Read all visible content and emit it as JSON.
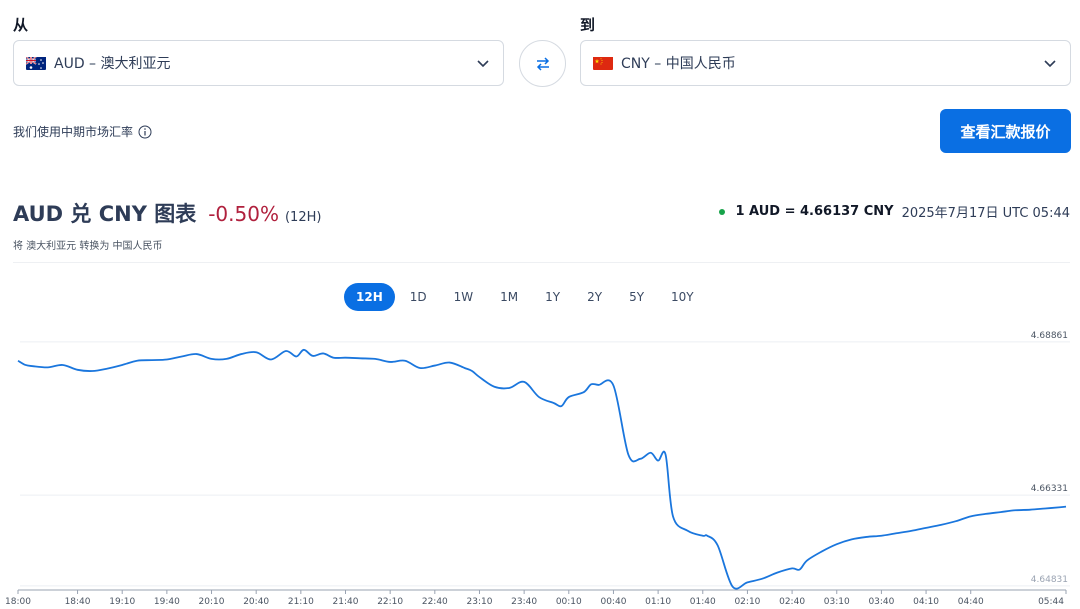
{
  "converter": {
    "from_label": "从",
    "to_label": "到",
    "from_value": "AUD – 澳大利亚元",
    "to_value": "CNY – 中国人民币",
    "midmarket_note": "我们使用中期市场汇率",
    "quote_button": "查看汇款报价"
  },
  "header": {
    "title": "AUD 兑 CNY 图表",
    "change": "-0.50%",
    "period": "(12H)",
    "subtitle": "将 澳大利亚元 转换为 中国人民币",
    "rate": "1 AUD = 4.66137 CNY",
    "timestamp": "2025年7月17日 UTC 05:44"
  },
  "tabs": [
    "12H",
    "1D",
    "1W",
    "1M",
    "1Y",
    "2Y",
    "5Y",
    "10Y"
  ],
  "active_tab": "12H",
  "colors": {
    "accent": "#0a6fe3",
    "negative": "#b0203d",
    "live_dot": "#17a34a",
    "line": "#1a76dd"
  },
  "chart_data": {
    "type": "line",
    "title": "",
    "xlabel": "",
    "ylabel": "",
    "y_ticks": [
      "4.68861",
      "4.66331",
      "4.64831"
    ],
    "ylim": [
      4.6478,
      4.6914
    ],
    "x_ticks": [
      "18:00",
      "18:40",
      "19:10",
      "19:40",
      "20:10",
      "20:40",
      "21:10",
      "21:40",
      "22:10",
      "22:40",
      "23:10",
      "23:40",
      "00:10",
      "00:40",
      "01:10",
      "01:40",
      "02:10",
      "02:40",
      "03:10",
      "03:40",
      "04:10",
      "04:40",
      "05:44"
    ],
    "grid": "horizontal",
    "series": [
      {
        "x": [
          "18:00",
          "18:05",
          "18:10",
          "18:20",
          "18:30",
          "18:40",
          "18:50",
          "19:00",
          "19:10",
          "19:20",
          "19:30",
          "19:40",
          "19:50",
          "20:00",
          "20:10",
          "20:20",
          "20:30",
          "20:40",
          "20:50",
          "21:00",
          "21:07",
          "21:12",
          "21:18",
          "21:25",
          "21:32",
          "21:40",
          "21:50",
          "22:00",
          "22:10",
          "22:20",
          "22:30",
          "22:40",
          "22:50",
          "23:00",
          "23:05",
          "23:10",
          "23:20",
          "23:30",
          "23:40",
          "23:50",
          "00:00",
          "00:05",
          "00:10",
          "00:20",
          "00:25",
          "00:30",
          "00:40",
          "00:50",
          "00:58",
          "01:05",
          "01:10",
          "01:15",
          "01:20",
          "01:30",
          "01:40",
          "01:43",
          "01:50",
          "02:00",
          "02:10",
          "02:20",
          "02:30",
          "02:40",
          "02:45",
          "02:50",
          "03:00",
          "03:10",
          "03:20",
          "03:30",
          "03:40",
          "03:50",
          "04:00",
          "04:10",
          "04:20",
          "04:30",
          "04:40",
          "04:50",
          "05:00",
          "05:10",
          "05:20",
          "05:30",
          "05:40",
          "05:44"
        ],
        "y": [
          4.6855,
          4.6848,
          4.6846,
          4.6844,
          4.6848,
          4.684,
          4.6838,
          4.6842,
          4.6848,
          4.6855,
          4.6856,
          4.6857,
          4.6862,
          4.6866,
          4.6858,
          4.6858,
          4.6866,
          4.6869,
          4.6857,
          4.6871,
          4.6862,
          4.6873,
          4.6863,
          4.6867,
          4.686,
          4.686,
          4.6859,
          4.6858,
          4.6853,
          4.6855,
          4.6843,
          4.6847,
          4.6852,
          4.6843,
          4.6838,
          4.6828,
          4.6812,
          4.681,
          4.682,
          4.6795,
          4.6785,
          4.678,
          4.6795,
          4.6803,
          4.6816,
          4.6815,
          4.6814,
          4.67,
          4.6693,
          4.6703,
          4.669,
          4.67,
          4.6598,
          4.6574,
          4.6566,
          4.6566,
          4.655,
          4.6482,
          4.6489,
          4.6495,
          4.6505,
          4.6512,
          4.651,
          4.6525,
          4.654,
          4.6552,
          4.656,
          4.6564,
          4.6566,
          4.657,
          4.6574,
          4.6579,
          4.6584,
          4.659,
          4.6598,
          4.6602,
          4.6605,
          4.6608,
          4.6609,
          4.6611,
          4.6613,
          4.6614
        ]
      }
    ]
  }
}
